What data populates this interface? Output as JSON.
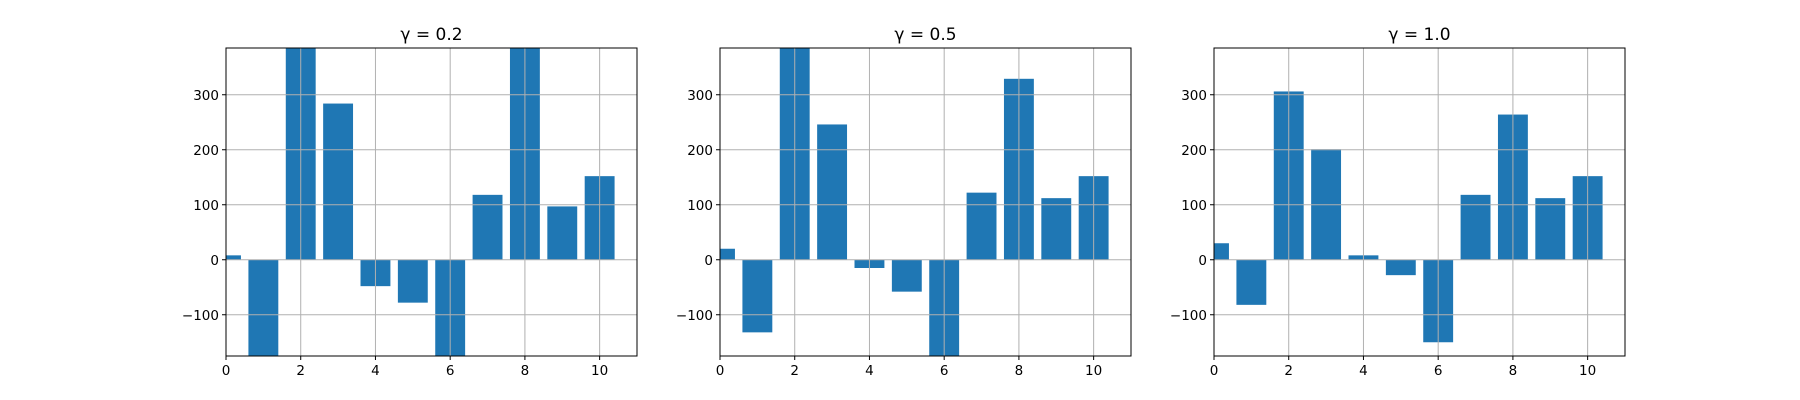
{
  "chart_data": [
    {
      "type": "bar",
      "title": "γ = 0.2",
      "x": [
        0,
        1,
        2,
        3,
        4,
        5,
        6,
        7,
        8,
        9,
        10
      ],
      "values": [
        8,
        -178,
        385,
        284,
        -48,
        -78,
        -178,
        118,
        385,
        97,
        152
      ],
      "xlim": [
        0,
        11
      ],
      "ylim": [
        -175,
        385
      ],
      "xticks": [
        0,
        2,
        4,
        6,
        8,
        10
      ],
      "yticks": [
        -100,
        0,
        100,
        200,
        300
      ],
      "grid": true,
      "color": "#1f77b4"
    },
    {
      "type": "bar",
      "title": "γ = 0.5",
      "x": [
        0,
        1,
        2,
        3,
        4,
        5,
        6,
        7,
        8,
        9,
        10
      ],
      "values": [
        20,
        -132,
        385,
        246,
        -15,
        -58,
        -178,
        122,
        329,
        112,
        152
      ],
      "xlim": [
        0,
        11
      ],
      "ylim": [
        -175,
        385
      ],
      "xticks": [
        0,
        2,
        4,
        6,
        8,
        10
      ],
      "yticks": [
        -100,
        0,
        100,
        200,
        300
      ],
      "grid": true,
      "color": "#1f77b4"
    },
    {
      "type": "bar",
      "title": "γ = 1.0",
      "x": [
        0,
        1,
        2,
        3,
        4,
        5,
        6,
        7,
        8,
        9,
        10
      ],
      "values": [
        30,
        -82,
        306,
        201,
        8,
        -28,
        -150,
        118,
        264,
        112,
        152
      ],
      "xlim": [
        0,
        11
      ],
      "ylim": [
        -175,
        385
      ],
      "xticks": [
        0,
        2,
        4,
        6,
        8,
        10
      ],
      "yticks": [
        -100,
        0,
        100,
        200,
        300
      ],
      "grid": true,
      "color": "#1f77b4"
    }
  ]
}
